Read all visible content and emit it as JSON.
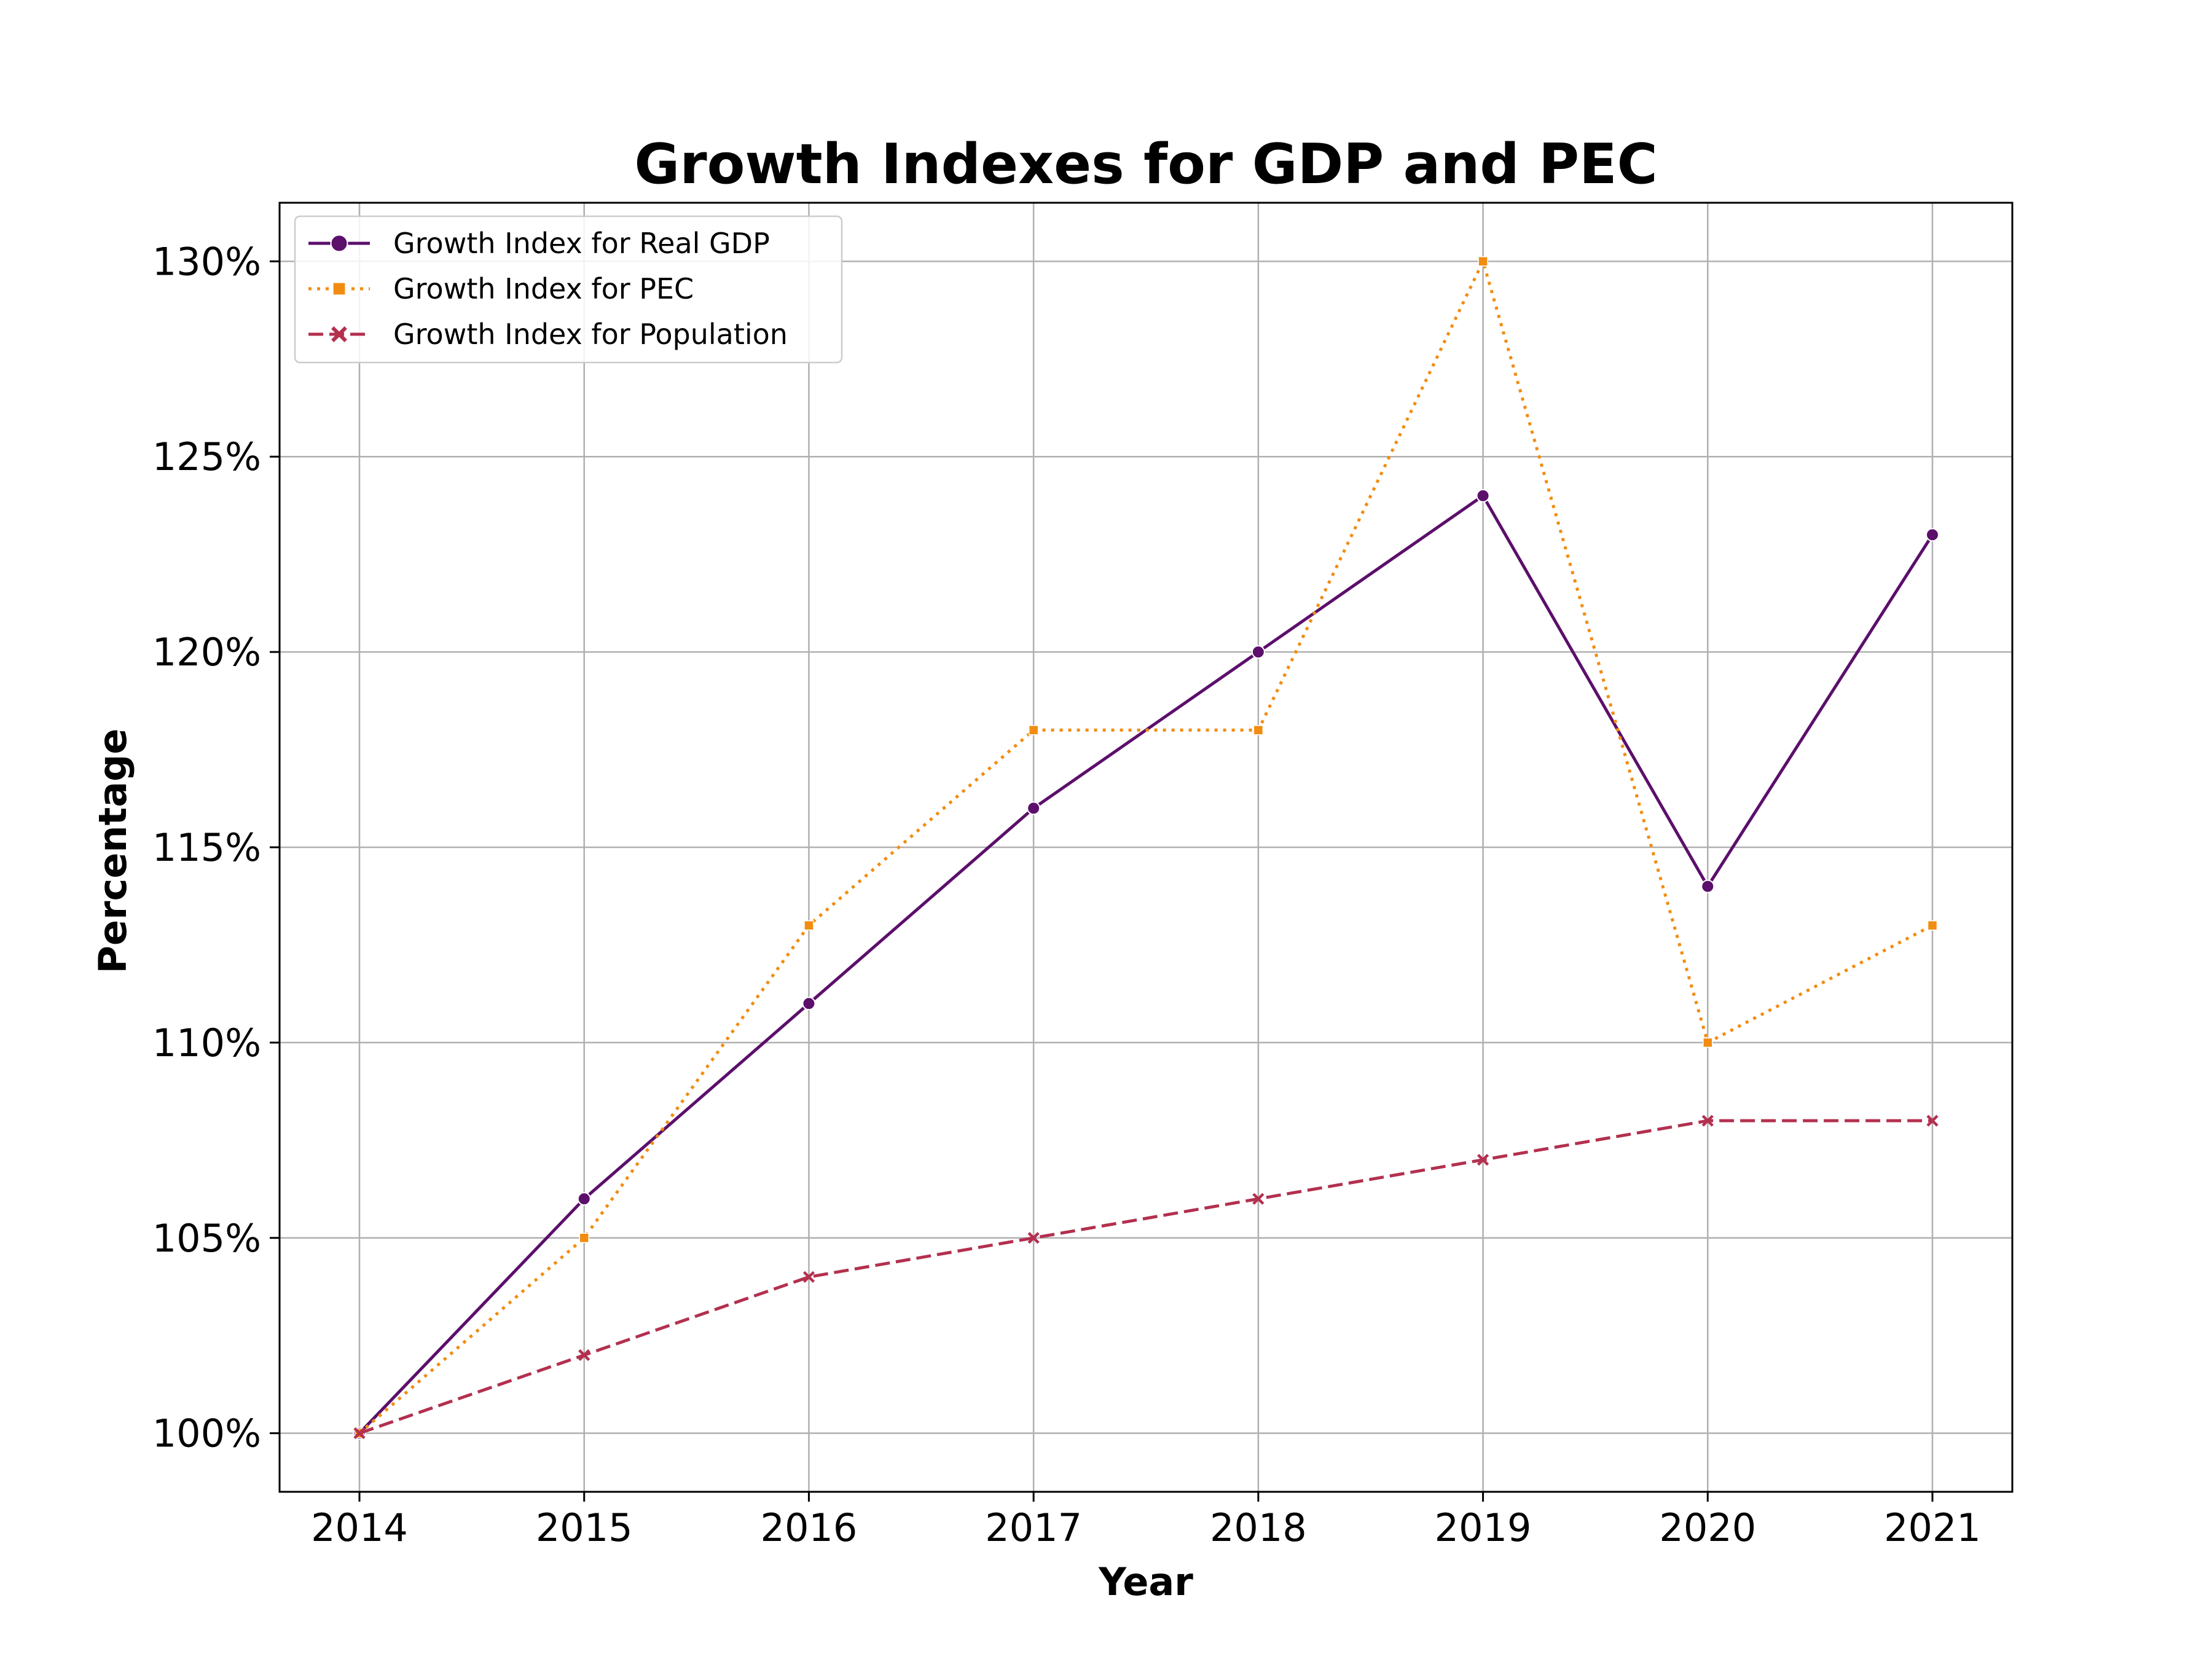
{
  "chart_data": {
    "type": "line",
    "title": "Growth Indexes for GDP and PEC",
    "xlabel": "Year",
    "ylabel": "Percentage",
    "categories": [
      "2014",
      "2015",
      "2016",
      "2017",
      "2018",
      "2019",
      "2020",
      "2021"
    ],
    "ylim": [
      98.5,
      131.5
    ],
    "yticks": [
      100,
      105,
      110,
      115,
      120,
      125,
      130
    ],
    "ytick_labels": [
      "100%",
      "105%",
      "110%",
      "115%",
      "120%",
      "125%",
      "130%"
    ],
    "grid": true,
    "legend_position": "top-left",
    "series": [
      {
        "name": "Growth Index for Real GDP",
        "values": [
          100,
          106,
          111,
          116,
          120,
          124,
          114,
          123
        ],
        "color": "#5c0f6b",
        "line_style": "solid",
        "marker": "circle"
      },
      {
        "name": "Growth Index for PEC",
        "values": [
          100,
          105,
          113,
          118,
          118,
          130,
          110,
          113
        ],
        "color": "#f28c10",
        "line_style": "dotted",
        "marker": "square"
      },
      {
        "name": "Growth Index for Population",
        "values": [
          100,
          102,
          104,
          105,
          106,
          107,
          108,
          108
        ],
        "color": "#b3304f",
        "line_style": "dashed",
        "marker": "x"
      }
    ]
  }
}
